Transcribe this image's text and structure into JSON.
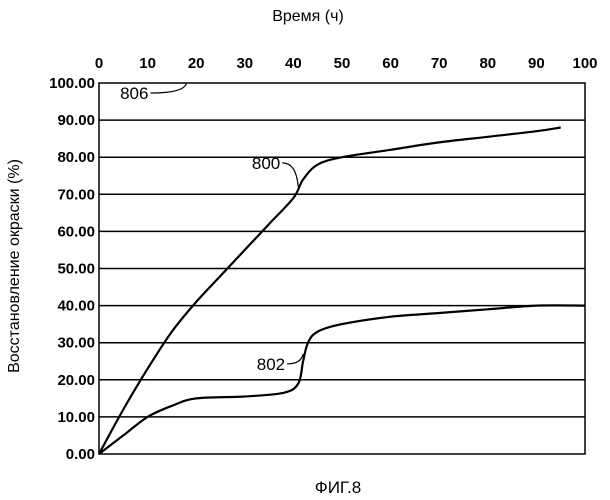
{
  "chart_data": {
    "type": "line",
    "title": "",
    "xlabel": "Время (ч)",
    "ylabel": "Восстановление окраски (%)",
    "caption": "ФИГ.8",
    "xlim": [
      0,
      100
    ],
    "ylim": [
      0,
      100
    ],
    "x_ticks": [
      "0",
      "10",
      "20",
      "30",
      "40",
      "50",
      "60",
      "70",
      "80",
      "90",
      "100"
    ],
    "y_ticks": [
      "0.00",
      "10.00",
      "20.00",
      "30.00",
      "40.00",
      "50.00",
      "60.00",
      "70.00",
      "80.00",
      "90.00",
      "100.00"
    ],
    "x_axis_position": "top",
    "grid": "horizontal",
    "legend": "none",
    "series": [
      {
        "name": "800",
        "color": "#000000",
        "points": [
          [
            0,
            0
          ],
          [
            5,
            12
          ],
          [
            10,
            23
          ],
          [
            15,
            33
          ],
          [
            20,
            41
          ],
          [
            25,
            48
          ],
          [
            30,
            55
          ],
          [
            35,
            62
          ],
          [
            40,
            69
          ],
          [
            42,
            74
          ],
          [
            45,
            78
          ],
          [
            50,
            80
          ],
          [
            60,
            82
          ],
          [
            70,
            84
          ],
          [
            80,
            85.5
          ],
          [
            90,
            87
          ],
          [
            95,
            88
          ]
        ]
      },
      {
        "name": "802",
        "color": "#000000",
        "points": [
          [
            0,
            0
          ],
          [
            5,
            5
          ],
          [
            10,
            10
          ],
          [
            15,
            13
          ],
          [
            20,
            15
          ],
          [
            30,
            15.5
          ],
          [
            38,
            16.5
          ],
          [
            41,
            19
          ],
          [
            42,
            25
          ],
          [
            43,
            30
          ],
          [
            45,
            33
          ],
          [
            50,
            35
          ],
          [
            60,
            37
          ],
          [
            70,
            38
          ],
          [
            80,
            39
          ],
          [
            90,
            40
          ],
          [
            100,
            40
          ]
        ]
      }
    ],
    "annotations": [
      {
        "text": "806",
        "target_x": 18,
        "target_y": 100
      },
      {
        "text": "800",
        "target_x": 41,
        "target_y": 72
      },
      {
        "text": "802",
        "target_x": 42,
        "target_y": 27
      }
    ]
  }
}
